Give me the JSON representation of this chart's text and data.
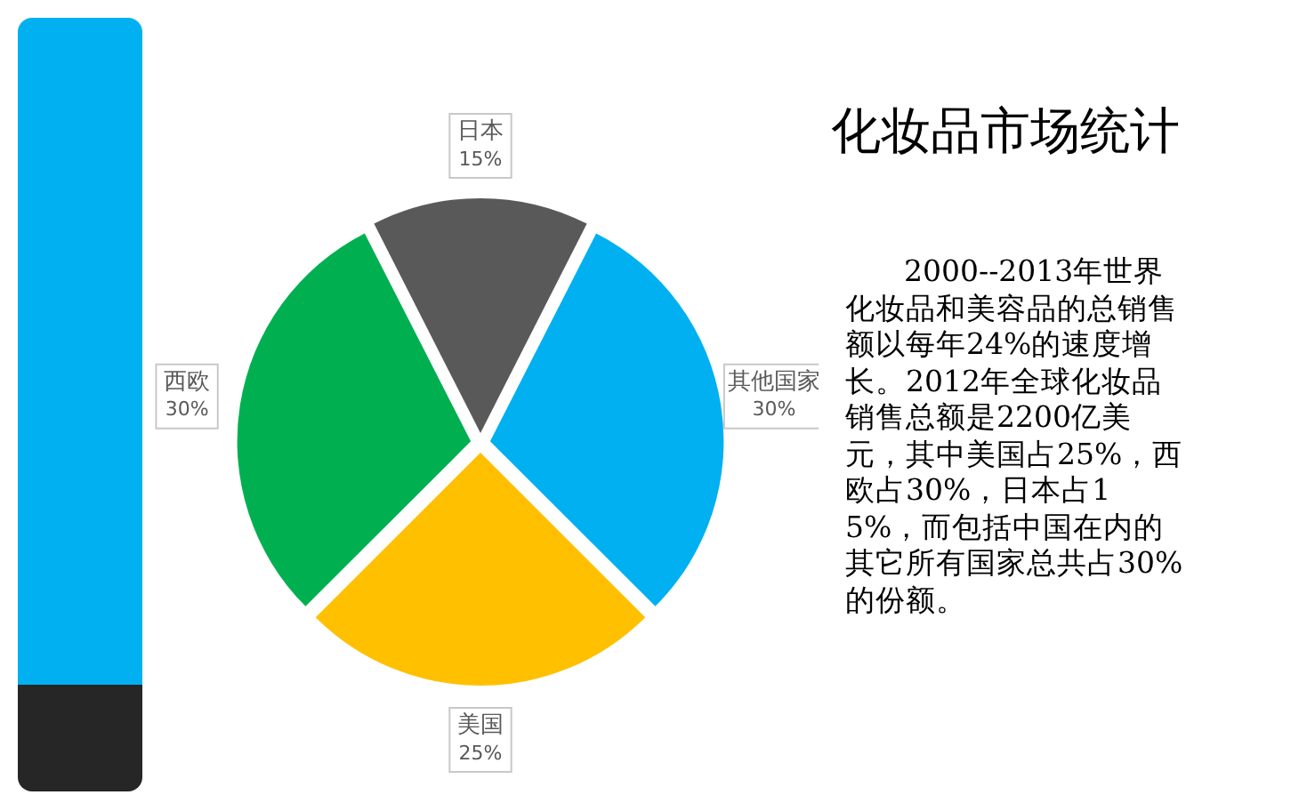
{
  "chart_data": {
    "type": "pie",
    "title": "化妆品市场统计",
    "categories": [
      "日本",
      "其他国家",
      "美国",
      "西欧"
    ],
    "values": [
      15,
      30,
      25,
      30
    ],
    "value_labels": [
      "15%",
      "30%",
      "25%",
      "30%"
    ],
    "colors": [
      "#595959",
      "#00b0f0",
      "#ffc000",
      "#00b050"
    ],
    "legend": false,
    "annotations": [
      "2000--2013年世界化妆品和美容品的总销售额以每年24%的速度增长。2012年全球化妆品销售总额是2200亿美元，其中美国占25%，西欧占30%，日本占15%，而包括中国在内的其它所有国家总共占30%的份额。"
    ]
  }
}
